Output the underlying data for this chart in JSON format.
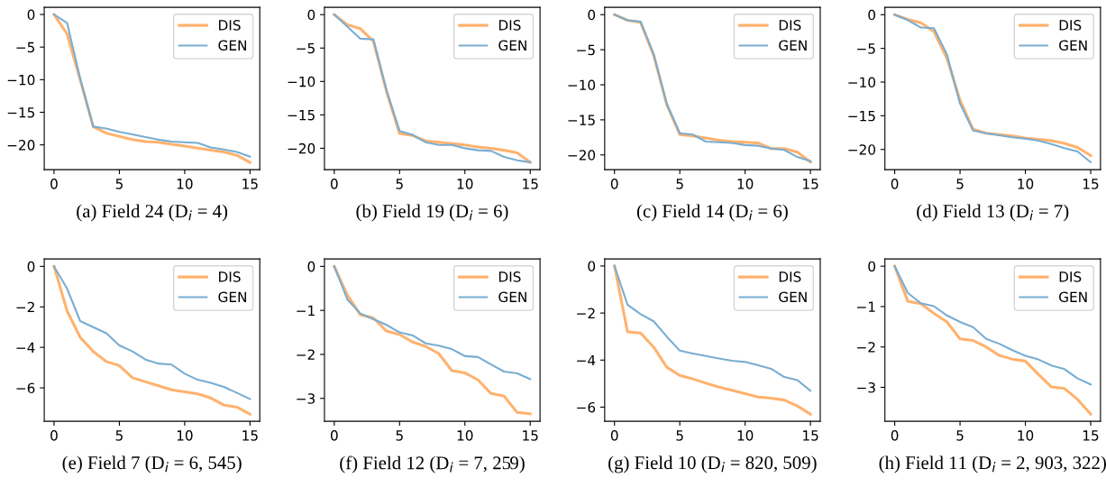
{
  "chart_data": [
    {
      "type": "line",
      "xlabel": "(a) Field 24 (D$_{i}$ = 4)",
      "x": [
        0,
        1,
        2,
        3,
        4,
        5,
        6,
        7,
        8,
        9,
        10,
        11,
        12,
        13,
        14,
        15
      ],
      "xlim": [
        -0.75,
        15.75
      ],
      "xticks": [
        0,
        5,
        10,
        15
      ],
      "ylim": [
        -23.8,
        1.1
      ],
      "yticks": [
        -20,
        -15,
        -10,
        -5,
        0
      ],
      "legend": "top right",
      "grid": false,
      "series": [
        {
          "name": "DIS",
          "color": "#ffb26e",
          "values": [
            0,
            -3,
            -10,
            -17.2,
            -18.2,
            -18.7,
            -19.2,
            -19.5,
            -19.6,
            -19.9,
            -20.2,
            -20.5,
            -20.8,
            -21.1,
            -21.6,
            -22.7
          ]
        },
        {
          "name": "GEN",
          "color": "#79add2",
          "values": [
            0,
            -1.3,
            -9.8,
            -17.2,
            -17.5,
            -18.0,
            -18.4,
            -18.8,
            -19.2,
            -19.5,
            -19.6,
            -19.7,
            -20.4,
            -20.7,
            -21.1,
            -21.8
          ]
        }
      ]
    },
    {
      "type": "line",
      "xlabel": "(b) Field 19 (D$_{i}$ = 6)",
      "x": [
        0,
        1,
        2,
        3,
        4,
        5,
        6,
        7,
        8,
        9,
        10,
        11,
        12,
        13,
        14,
        15
      ],
      "xlim": [
        -0.75,
        15.75
      ],
      "xticks": [
        0,
        5,
        10,
        15
      ],
      "ylim": [
        -23.2,
        1.1
      ],
      "yticks": [
        -20,
        -15,
        -10,
        -5,
        0
      ],
      "legend": "top right",
      "grid": false,
      "series": [
        {
          "name": "DIS",
          "color": "#ffb26e",
          "values": [
            0,
            -1.5,
            -2.1,
            -4.0,
            -11.5,
            -17.8,
            -18.1,
            -18.9,
            -19.1,
            -19.3,
            -19.5,
            -19.8,
            -20.0,
            -20.3,
            -20.7,
            -22.1
          ]
        },
        {
          "name": "GEN",
          "color": "#79add2",
          "values": [
            0,
            -1.8,
            -3.6,
            -3.7,
            -11.3,
            -17.4,
            -18.0,
            -19.1,
            -19.5,
            -19.5,
            -20.0,
            -20.3,
            -20.4,
            -21.3,
            -21.8,
            -22.1
          ]
        }
      ]
    },
    {
      "type": "line",
      "xlabel": "(c) Field 14 (D$_{i}$ = 6)",
      "x": [
        0,
        1,
        2,
        3,
        4,
        5,
        6,
        7,
        8,
        9,
        10,
        11,
        12,
        13,
        14,
        15
      ],
      "xlim": [
        -0.75,
        15.75
      ],
      "xticks": [
        0,
        5,
        10,
        15
      ],
      "ylim": [
        -22.1,
        1.05
      ],
      "yticks": [
        -20,
        -15,
        -10,
        -5,
        0
      ],
      "legend": "top right",
      "grid": false,
      "series": [
        {
          "name": "DIS",
          "color": "#ffb26e",
          "values": [
            0,
            -0.8,
            -1.1,
            -5.8,
            -12.8,
            -17.1,
            -17.3,
            -17.6,
            -17.9,
            -18.1,
            -18.2,
            -18.3,
            -19.1,
            -19.1,
            -19.6,
            -21.0
          ]
        },
        {
          "name": "GEN",
          "color": "#79add2",
          "values": [
            0,
            -0.8,
            -1.0,
            -5.6,
            -12.7,
            -16.9,
            -17.1,
            -18.1,
            -18.2,
            -18.3,
            -18.6,
            -18.7,
            -19.1,
            -19.3,
            -20.3,
            -20.9
          ]
        }
      ]
    },
    {
      "type": "line",
      "xlabel": "(d) Field 13 (D$_{i}$ = 7)",
      "x": [
        0,
        1,
        2,
        3,
        4,
        5,
        6,
        7,
        8,
        9,
        10,
        11,
        12,
        13,
        14,
        15
      ],
      "xlim": [
        -0.75,
        15.75
      ],
      "xticks": [
        0,
        5,
        10,
        15
      ],
      "ylim": [
        -23.0,
        1.1
      ],
      "yticks": [
        -20,
        -15,
        -10,
        -5,
        0
      ],
      "legend": "top right",
      "grid": false,
      "series": [
        {
          "name": "DIS",
          "color": "#ffb26e",
          "values": [
            0,
            -0.7,
            -1.2,
            -2.5,
            -6.5,
            -12.7,
            -17.0,
            -17.6,
            -17.8,
            -18.0,
            -18.3,
            -18.5,
            -18.7,
            -19.1,
            -19.7,
            -20.9
          ]
        },
        {
          "name": "GEN",
          "color": "#79add2",
          "values": [
            0,
            -0.8,
            -1.9,
            -2.0,
            -5.9,
            -13.2,
            -17.2,
            -17.6,
            -17.9,
            -18.2,
            -18.4,
            -18.7,
            -19.2,
            -19.8,
            -20.3,
            -21.9
          ]
        }
      ]
    },
    {
      "type": "line",
      "xlabel": "(e) Field 7 (D$_{i}$ = 6, 545)",
      "x": [
        0,
        1,
        2,
        3,
        4,
        5,
        6,
        7,
        8,
        9,
        10,
        11,
        12,
        13,
        14,
        15
      ],
      "xlim": [
        -0.75,
        15.75
      ],
      "xticks": [
        0,
        5,
        10,
        15
      ],
      "ylim": [
        -7.65,
        0.37
      ],
      "yticks": [
        -6,
        -4,
        -2,
        0
      ],
      "legend": "top right",
      "grid": false,
      "series": [
        {
          "name": "DIS",
          "color": "#ffb26e",
          "values": [
            0,
            -2.2,
            -3.5,
            -4.2,
            -4.7,
            -4.9,
            -5.5,
            -5.7,
            -5.9,
            -6.1,
            -6.2,
            -6.3,
            -6.5,
            -6.85,
            -6.95,
            -7.3
          ]
        },
        {
          "name": "GEN",
          "color": "#79add2",
          "values": [
            0,
            -1.1,
            -2.7,
            -3.0,
            -3.3,
            -3.9,
            -4.2,
            -4.6,
            -4.8,
            -4.85,
            -5.3,
            -5.6,
            -5.75,
            -5.95,
            -6.25,
            -6.55
          ]
        }
      ]
    },
    {
      "type": "line",
      "xlabel": "(f) Field 12 (D$_{i}$ = 7, 259)",
      "x": [
        0,
        1,
        2,
        3,
        4,
        5,
        6,
        7,
        8,
        9,
        10,
        11,
        12,
        13,
        14,
        15
      ],
      "xlim": [
        -0.75,
        15.75
      ],
      "xticks": [
        0,
        5,
        10,
        15
      ],
      "ylim": [
        -3.52,
        0.17
      ],
      "yticks": [
        -3,
        -2,
        -1,
        0
      ],
      "legend": "top right",
      "grid": false,
      "series": [
        {
          "name": "DIS",
          "color": "#ffb26e",
          "values": [
            0,
            -0.65,
            -1.1,
            -1.17,
            -1.47,
            -1.55,
            -1.72,
            -1.82,
            -1.98,
            -2.37,
            -2.42,
            -2.58,
            -2.89,
            -2.95,
            -3.32,
            -3.35
          ]
        },
        {
          "name": "GEN",
          "color": "#79add2",
          "values": [
            0,
            -0.75,
            -1.07,
            -1.2,
            -1.33,
            -1.5,
            -1.57,
            -1.75,
            -1.8,
            -1.88,
            -2.04,
            -2.06,
            -2.23,
            -2.39,
            -2.43,
            -2.56
          ]
        }
      ]
    },
    {
      "type": "line",
      "xlabel": "(g) Field 10 (D$_{i}$ = 820, 509)",
      "x": [
        0,
        1,
        2,
        3,
        4,
        5,
        6,
        7,
        8,
        9,
        10,
        11,
        12,
        13,
        14,
        15
      ],
      "xlim": [
        -0.75,
        15.75
      ],
      "xticks": [
        0,
        5,
        10,
        15
      ],
      "ylim": [
        -6.6,
        0.3
      ],
      "yticks": [
        -6,
        -4,
        -2,
        0
      ],
      "legend": "top right",
      "grid": false,
      "series": [
        {
          "name": "DIS",
          "color": "#ffb26e",
          "values": [
            0,
            -2.8,
            -2.85,
            -3.45,
            -4.3,
            -4.65,
            -4.8,
            -4.98,
            -5.15,
            -5.28,
            -5.43,
            -5.57,
            -5.62,
            -5.7,
            -5.95,
            -6.3
          ]
        },
        {
          "name": "GEN",
          "color": "#79add2",
          "values": [
            0,
            -1.65,
            -2.05,
            -2.35,
            -3.0,
            -3.6,
            -3.72,
            -3.83,
            -3.93,
            -4.03,
            -4.08,
            -4.22,
            -4.37,
            -4.72,
            -4.85,
            -5.3
          ]
        }
      ]
    },
    {
      "type": "line",
      "xlabel": "(h) Field 11 (D$_{i}$ = 2, 903, 322)",
      "x": [
        0,
        1,
        2,
        3,
        4,
        5,
        6,
        7,
        8,
        9,
        10,
        11,
        12,
        13,
        14,
        15
      ],
      "xlim": [
        -0.75,
        15.75
      ],
      "xticks": [
        0,
        5,
        10,
        15
      ],
      "ylim": [
        -3.84,
        0.18
      ],
      "yticks": [
        -3,
        -2,
        -1,
        0
      ],
      "legend": "top right",
      "grid": false,
      "series": [
        {
          "name": "DIS",
          "color": "#ffb26e",
          "values": [
            0,
            -0.87,
            -0.93,
            -1.17,
            -1.38,
            -1.8,
            -1.84,
            -2.0,
            -2.21,
            -2.3,
            -2.35,
            -2.68,
            -2.99,
            -3.03,
            -3.3,
            -3.66
          ]
        },
        {
          "name": "GEN",
          "color": "#79add2",
          "values": [
            0,
            -0.66,
            -0.92,
            -0.99,
            -1.22,
            -1.38,
            -1.51,
            -1.8,
            -1.92,
            -2.08,
            -2.22,
            -2.31,
            -2.46,
            -2.55,
            -2.78,
            -2.93
          ]
        }
      ]
    }
  ]
}
